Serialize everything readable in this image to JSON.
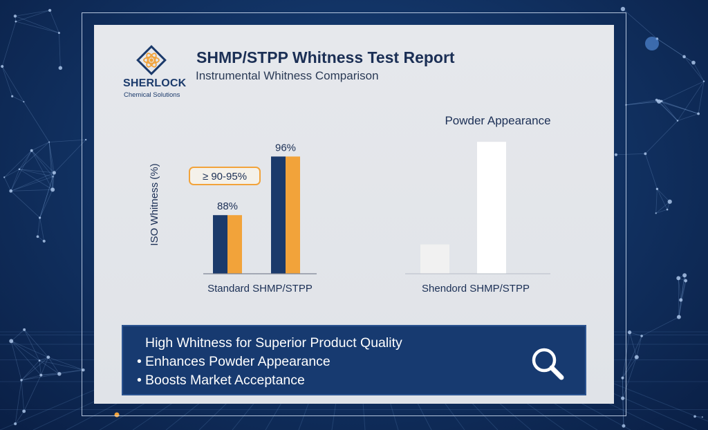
{
  "header": {
    "title": "SHMP/STPP Whitness Test Report",
    "subtitle": "Instrumental Whitness Comparison"
  },
  "logo": {
    "name": "SHERLOCK",
    "tagline": "Chemical Solutions"
  },
  "colors": {
    "navy": "#1b3a6b",
    "orange": "#f2a33a",
    "white_bar": "#ffffff",
    "light_bar": "#f1f1f1"
  },
  "chart_data": [
    {
      "type": "bar",
      "ylabel": "ISO Whitness (%)",
      "xlabel": "Standard SHMP/STPP",
      "ylim": [
        80,
        100
      ],
      "categories": [
        "",
        ""
      ],
      "values": [
        88,
        96
      ],
      "data_labels": [
        "88%",
        "96%"
      ],
      "annotation": "≥ 90-95%",
      "grid": false
    },
    {
      "type": "bar",
      "title": "Powder Appearance",
      "xlabel": "Shendord SHMP/STPP",
      "ylim": [
        80,
        100
      ],
      "categories": [
        "",
        ""
      ],
      "values": [
        84,
        98
      ]
    }
  ],
  "bottom": {
    "heading": "High Whitness for Superior Product Quality",
    "bullets": [
      "Enhances Powder Appearance",
      "Boosts Market Acceptance"
    ],
    "bullet_char": "•",
    "icon": "search-icon"
  }
}
